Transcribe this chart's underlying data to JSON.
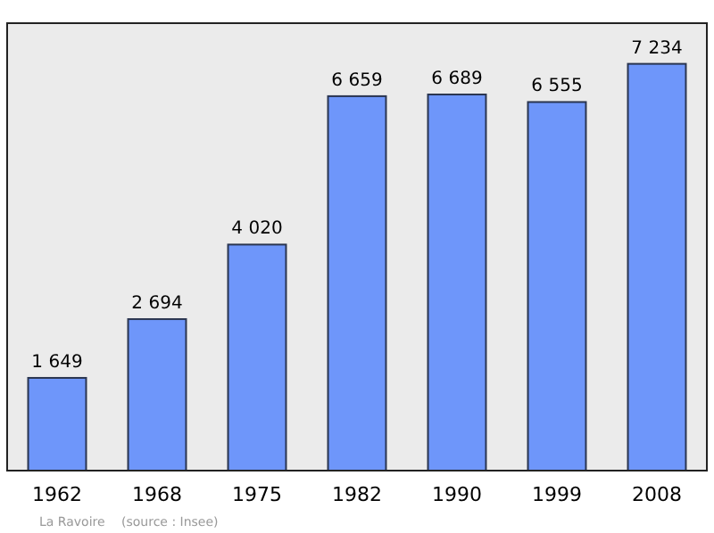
{
  "chart_data": {
    "type": "bar",
    "categories": [
      "1962",
      "1968",
      "1975",
      "1982",
      "1990",
      "1999",
      "2008"
    ],
    "values": [
      1649,
      2694,
      4020,
      6659,
      6689,
      6555,
      7234
    ],
    "value_labels": [
      "1 649",
      "2 694",
      "4 020",
      "6 659",
      "6 689",
      "6 555",
      "7 234"
    ],
    "color": "#6e96fa",
    "annotations": [
      "La Ravoire",
      "(source : Insee)"
    ]
  }
}
